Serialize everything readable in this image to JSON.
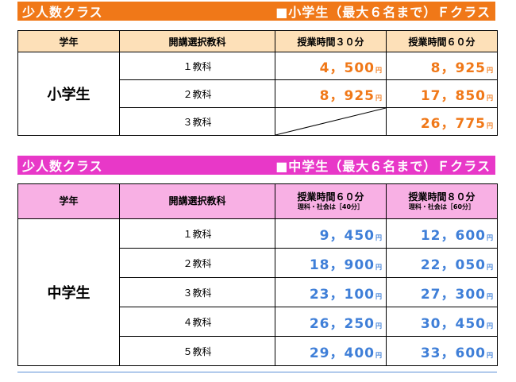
{
  "section1": {
    "banner_left": "少人数クラス",
    "banner_right": "■小学生（最大６名まで）Ｆクラス",
    "headers": [
      "学年",
      "開講選択教科",
      "授業時間３０分",
      "授業時間６０分"
    ],
    "grade": "小学生",
    "yen": "円",
    "rows": [
      {
        "subject": "１教科",
        "p1": "4，500",
        "p2": "8，925"
      },
      {
        "subject": "２教科",
        "p1": "8，925",
        "p2": "17，850"
      },
      {
        "subject": "３教科",
        "p1": "",
        "p2": "26，775"
      }
    ],
    "accent_color": "#f07818"
  },
  "section2": {
    "banner_left": "少人数クラス",
    "banner_right": "■中学生（最大６名まで）Ｆクラス",
    "headers": [
      "学年",
      "開講選択教科",
      "授業時間６０分",
      "授業時間８０分"
    ],
    "header_subs": [
      "理科・社会は［40分］",
      "理科・社会は［60分］"
    ],
    "grade": "中学生",
    "yen": "円",
    "rows": [
      {
        "subject": "１教科",
        "p1": "9，450",
        "p2": "12，600"
      },
      {
        "subject": "２教科",
        "p1": "18，900",
        "p2": "22，050"
      },
      {
        "subject": "３教科",
        "p1": "23，100",
        "p2": "27，300"
      },
      {
        "subject": "４教科",
        "p1": "26，250",
        "p2": "30，450"
      },
      {
        "subject": "５教科",
        "p1": "29，400",
        "p2": "33，600"
      }
    ],
    "accent_color": "#e838c8",
    "price_color": "#3f7fd8"
  }
}
